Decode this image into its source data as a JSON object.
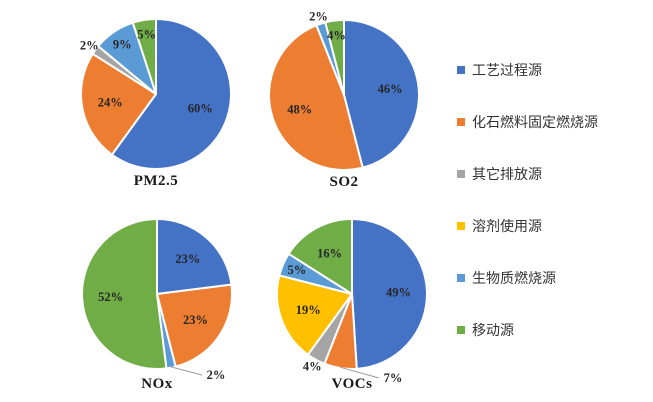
{
  "palette": {
    "blue": "#4472C4",
    "orange": "#ED7D31",
    "gray": "#A5A5A5",
    "yellow": "#FFC000",
    "lightblue": "#5B9BD5",
    "green": "#70AD47"
  },
  "legend": {
    "position": "right",
    "items": [
      {
        "label": "工艺过程源",
        "color": "blue"
      },
      {
        "label": "化石燃料固定燃烧源",
        "color": "orange"
      },
      {
        "label": "其它排放源",
        "color": "gray"
      },
      {
        "label": "溶剂使用源",
        "color": "yellow"
      },
      {
        "label": "生物质燃烧源",
        "color": "lightblue"
      },
      {
        "label": "移动源",
        "color": "green"
      }
    ]
  },
  "chart_data": [
    {
      "type": "pie",
      "title": "PM2.5",
      "start_angle_deg": 0,
      "direction": "clockwise",
      "slices": [
        {
          "name": "工艺过程源",
          "value": 60,
          "label": "60%",
          "color": "blue",
          "label_pos": "in"
        },
        {
          "name": "化石燃料固定燃烧源",
          "value": 24,
          "label": "24%",
          "color": "orange",
          "label_pos": "in"
        },
        {
          "name": "其它排放源",
          "value": 2,
          "label": "2%",
          "color": "gray",
          "label_pos": "out"
        },
        {
          "name": "生物质燃烧源",
          "value": 9,
          "label": "9%",
          "color": "lightblue",
          "label_pos": "in"
        },
        {
          "name": "移动源",
          "value": 5,
          "label": "5%",
          "color": "green",
          "label_pos": "in"
        }
      ]
    },
    {
      "type": "pie",
      "title": "SO2",
      "start_angle_deg": 0,
      "direction": "clockwise",
      "slices": [
        {
          "name": "工艺过程源",
          "value": 46,
          "label": "46%",
          "color": "blue",
          "label_pos": "in"
        },
        {
          "name": "化石燃料固定燃烧源",
          "value": 48,
          "label": "48%",
          "color": "orange",
          "label_pos": "in"
        },
        {
          "name": "生物质燃烧源",
          "value": 2,
          "label": "2%",
          "color": "lightblue",
          "label_pos": "out"
        },
        {
          "name": "移动源",
          "value": 4,
          "label": "4%",
          "color": "green",
          "label_pos": "in"
        }
      ]
    },
    {
      "type": "pie",
      "title": "NOx",
      "start_angle_deg": 0,
      "direction": "clockwise",
      "slices": [
        {
          "name": "工艺过程源",
          "value": 23,
          "label": "23%",
          "color": "blue",
          "label_pos": "in"
        },
        {
          "name": "化石燃料固定燃烧源",
          "value": 23,
          "label": "23%",
          "color": "orange",
          "label_pos": "in"
        },
        {
          "name": "生物质燃烧源",
          "value": 2,
          "label": "2%",
          "color": "lightblue",
          "label_pos": "callout",
          "label_at": [
            59,
            81
          ]
        },
        {
          "name": "移动源",
          "value": 52,
          "label": "52%",
          "color": "green",
          "label_pos": "in"
        }
      ]
    },
    {
      "type": "pie",
      "title": "VOCs",
      "start_angle_deg": 0,
      "direction": "clockwise",
      "slices": [
        {
          "name": "工艺过程源",
          "value": 49,
          "label": "49%",
          "color": "blue",
          "label_pos": "in"
        },
        {
          "name": "化石燃料固定燃烧源",
          "value": 7,
          "label": "7%",
          "color": "orange",
          "label_pos": "callout",
          "label_at": [
            41,
            84
          ]
        },
        {
          "name": "其它排放源",
          "value": 4,
          "label": "4%",
          "color": "gray",
          "label_pos": "out"
        },
        {
          "name": "溶剂使用源",
          "value": 19,
          "label": "19%",
          "color": "yellow",
          "label_pos": "in"
        },
        {
          "name": "生物质燃烧源",
          "value": 5,
          "label": "5%",
          "color": "lightblue",
          "label_pos": "in"
        },
        {
          "name": "移动源",
          "value": 16,
          "label": "16%",
          "color": "green",
          "label_pos": "in"
        }
      ]
    }
  ]
}
